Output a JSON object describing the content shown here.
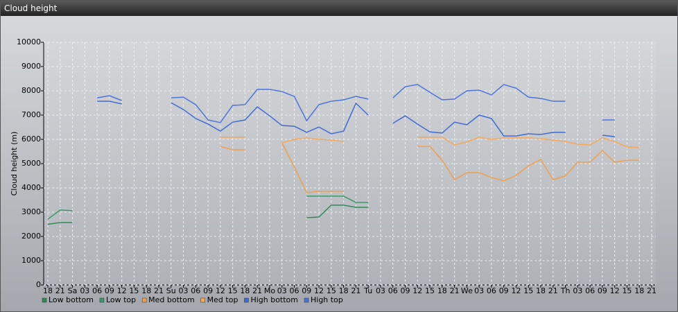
{
  "window_title": "Cloud height",
  "chart_data": {
    "type": "line",
    "y_label": "Cloud height (m)",
    "categories": [
      "18",
      "21",
      "Sa",
      "03",
      "06",
      "09",
      "12",
      "15",
      "18",
      "21",
      "Su",
      "03",
      "06",
      "09",
      "12",
      "15",
      "18",
      "21",
      "Mo",
      "03",
      "06",
      "09",
      "12",
      "15",
      "18",
      "21",
      "Tu",
      "03",
      "06",
      "09",
      "12",
      "15",
      "18",
      "21",
      "We",
      "03",
      "06",
      "09",
      "12",
      "15",
      "18",
      "21",
      "Th",
      "03",
      "06",
      "09",
      "12",
      "15",
      "18",
      "21"
    ],
    "ylim": [
      0,
      10000
    ],
    "yticks": [
      0,
      1000,
      2000,
      3000,
      4000,
      5000,
      6000,
      7000,
      8000,
      9000,
      10000
    ],
    "grid": true,
    "legend": "bottom-left",
    "series": [
      {
        "name": "Low bottom",
        "color": "#2e8b57",
        "values": [
          2500,
          2570,
          2570,
          null,
          null,
          null,
          null,
          null,
          null,
          null,
          null,
          null,
          null,
          null,
          null,
          null,
          null,
          null,
          null,
          null,
          null,
          2770,
          2800,
          3290,
          3290,
          3200,
          3200,
          null,
          null,
          null,
          null,
          null,
          null,
          null,
          null,
          null,
          null,
          null,
          null,
          null,
          null,
          null,
          null,
          null,
          null,
          null,
          null,
          null,
          null,
          null
        ]
      },
      {
        "name": "Low top",
        "color": "#3a9a6a",
        "values": [
          2710,
          3090,
          3060,
          null,
          null,
          null,
          null,
          null,
          null,
          null,
          null,
          null,
          null,
          null,
          null,
          null,
          null,
          null,
          null,
          null,
          null,
          3660,
          3660,
          3660,
          3660,
          3400,
          3400,
          null,
          null,
          null,
          null,
          null,
          null,
          null,
          null,
          null,
          null,
          null,
          null,
          null,
          null,
          null,
          null,
          null,
          null,
          null,
          null,
          null,
          null,
          null
        ]
      },
      {
        "name": "Med bottom",
        "color": "#f0a04b",
        "values": [
          null,
          null,
          null,
          null,
          null,
          null,
          null,
          null,
          null,
          null,
          null,
          null,
          null,
          null,
          5710,
          5570,
          5570,
          null,
          null,
          5860,
          4860,
          3800,
          3860,
          3860,
          3860,
          null,
          null,
          null,
          null,
          null,
          5710,
          5710,
          5140,
          4340,
          4630,
          4630,
          4430,
          4290,
          4510,
          4910,
          5170,
          4340,
          4490,
          5060,
          5060,
          5540,
          5060,
          5140,
          5140,
          null
        ]
      },
      {
        "name": "Med top",
        "color": "#f5a855",
        "values": [
          null,
          null,
          null,
          null,
          null,
          null,
          null,
          null,
          null,
          null,
          null,
          null,
          null,
          null,
          6090,
          6090,
          6090,
          null,
          null,
          5860,
          6000,
          6060,
          6000,
          5970,
          5910,
          null,
          null,
          null,
          null,
          null,
          6090,
          6090,
          6090,
          5770,
          5890,
          6090,
          6000,
          6060,
          6060,
          6060,
          6030,
          5970,
          5910,
          5800,
          5770,
          6060,
          5910,
          5690,
          5660,
          null
        ]
      },
      {
        "name": "High bottom",
        "color": "#3f6bd6",
        "values": [
          null,
          null,
          null,
          null,
          7570,
          7570,
          7460,
          null,
          null,
          null,
          7510,
          7230,
          6860,
          6630,
          6340,
          6710,
          6800,
          7340,
          6970,
          6570,
          6540,
          6290,
          6510,
          6230,
          6340,
          7490,
          7000,
          null,
          6660,
          6970,
          6630,
          6310,
          6260,
          6710,
          6600,
          7000,
          6860,
          6140,
          6140,
          6230,
          6200,
          6290,
          6290,
          null,
          null,
          6170,
          6110,
          null,
          null,
          null
        ]
      },
      {
        "name": "High top",
        "color": "#4a74dc",
        "values": [
          null,
          null,
          null,
          null,
          7710,
          7800,
          7600,
          null,
          null,
          null,
          7710,
          7740,
          7430,
          6800,
          6690,
          7400,
          7430,
          8060,
          8060,
          7970,
          7770,
          6770,
          7430,
          7570,
          7630,
          7770,
          7660,
          null,
          7710,
          8170,
          8260,
          7940,
          7630,
          7660,
          8000,
          8030,
          7830,
          8260,
          8110,
          7740,
          7690,
          7570,
          7570,
          null,
          null,
          6800,
          6800,
          null,
          null,
          null
        ]
      }
    ]
  }
}
